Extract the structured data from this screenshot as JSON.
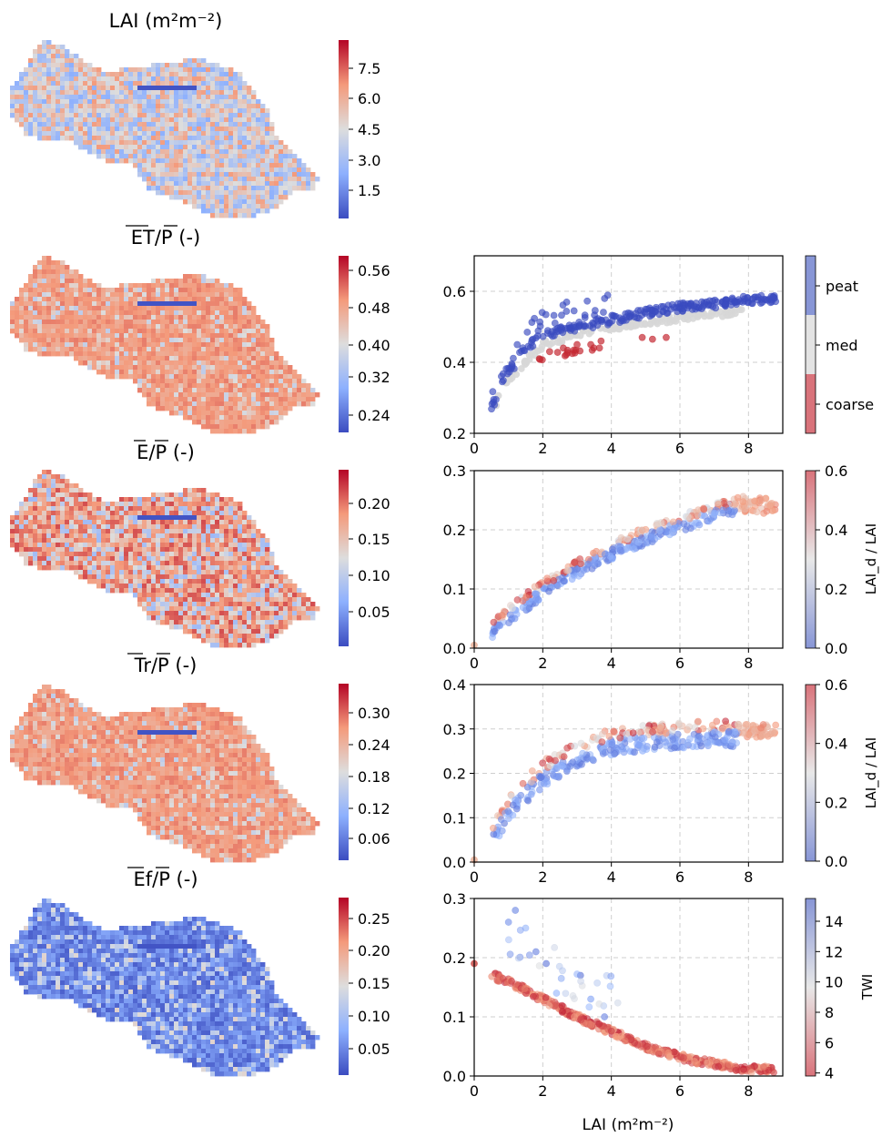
{
  "maps": [
    {
      "title": "LAI (m²m⁻²)",
      "cbar_ticks": [
        "7.5",
        "6.0",
        "4.5",
        "3.0",
        "1.5"
      ],
      "range": [
        0.2,
        8.6
      ],
      "scheme": "mixed-blue"
    },
    {
      "title": "ET/P (-)",
      "cbar_ticks": [
        "0.56",
        "0.48",
        "0.40",
        "0.32",
        "0.24"
      ],
      "range": [
        0.21,
        0.59
      ],
      "scheme": "mostly-red"
    },
    {
      "title": "E/P (-)",
      "cbar_ticks": [
        "0.20",
        "0.15",
        "0.10",
        "0.05"
      ],
      "range": [
        0.01,
        0.24
      ],
      "scheme": "red-mix"
    },
    {
      "title": "Tr/P (-)",
      "cbar_ticks": [
        "0.30",
        "0.24",
        "0.18",
        "0.12",
        "0.06"
      ],
      "range": [
        0.01,
        0.34
      ],
      "scheme": "mostly-red"
    },
    {
      "title": "Ef/P (-)",
      "cbar_ticks": [
        "0.25",
        "0.20",
        "0.15",
        "0.10",
        "0.05"
      ],
      "range": [
        0.01,
        0.28
      ],
      "scheme": "mostly-blue"
    }
  ],
  "chart_data": [
    {
      "type": "scatter",
      "panel": "ET/P vs LAI",
      "xlim": [
        0,
        9
      ],
      "ylim": [
        0.2,
        0.7
      ],
      "x_ticks": [
        "0",
        "2",
        "4",
        "6",
        "8"
      ],
      "y_ticks": [
        "0.2",
        "0.4",
        "0.6"
      ],
      "grid": true,
      "colorbar": {
        "type": "categorical",
        "categories": [
          "peat",
          "med",
          "coarse"
        ],
        "colors": [
          "#8896d6",
          "#e3e3e3",
          "#d9737b"
        ]
      },
      "series": [
        {
          "name": "peat",
          "color": "#3b4cc0",
          "x": [
            0.5,
            1,
            1.5,
            2,
            3,
            4,
            5,
            6,
            7,
            8,
            8.8
          ],
          "y": [
            0.27,
            0.37,
            0.44,
            0.48,
            0.5,
            0.52,
            0.54,
            0.555,
            0.565,
            0.575,
            0.58
          ]
        },
        {
          "name": "med",
          "color": "#dcdcdc",
          "x": [
            0.5,
            1,
            2,
            3,
            4,
            5,
            6,
            7,
            7.8
          ],
          "y": [
            0.26,
            0.35,
            0.45,
            0.48,
            0.5,
            0.515,
            0.525,
            0.535,
            0.54
          ]
        },
        {
          "name": "coarse",
          "color": "#c42a33",
          "x": [
            1.9,
            2.2,
            2.6,
            3.0,
            3.4,
            3.7,
            4.9,
            5.2,
            5.6
          ],
          "y": [
            0.41,
            0.43,
            0.44,
            0.45,
            0.45,
            0.46,
            0.47,
            0.465,
            0.47
          ]
        }
      ]
    },
    {
      "type": "scatter",
      "panel": "E/P vs LAI",
      "xlim": [
        0,
        9
      ],
      "ylim": [
        0,
        0.3
      ],
      "x_ticks": [
        "0",
        "2",
        "4",
        "6",
        "8"
      ],
      "y_ticks": [
        "0.0",
        "0.1",
        "0.2",
        "0.3"
      ],
      "grid": true,
      "colorbar": {
        "label": "LAI_d / LAI",
        "ticks": [
          "0.0",
          "0.2",
          "0.4",
          "0.6"
        ],
        "range": [
          0,
          0.6
        ]
      },
      "curve": {
        "x": [
          0.5,
          1,
          2,
          3,
          4,
          5,
          6,
          7,
          7.7,
          8.8
        ],
        "y": [
          0.03,
          0.055,
          0.1,
          0.135,
          0.165,
          0.19,
          0.21,
          0.23,
          0.24,
          0.235
        ]
      }
    },
    {
      "type": "scatter",
      "panel": "Tr/P vs LAI",
      "xlim": [
        0,
        9
      ],
      "ylim": [
        0,
        0.4
      ],
      "x_ticks": [
        "0",
        "2",
        "4",
        "6",
        "8"
      ],
      "y_ticks": [
        "0.0",
        "0.1",
        "0.2",
        "0.3",
        "0.4"
      ],
      "grid": true,
      "colorbar": {
        "label": "LAI_d / LAI",
        "ticks": [
          "0.0",
          "0.2",
          "0.4",
          "0.6"
        ],
        "range": [
          0,
          0.6
        ]
      },
      "curve": {
        "x": [
          0.5,
          1,
          2,
          3,
          4,
          5,
          6,
          7,
          7.7
        ],
        "y": [
          0.06,
          0.12,
          0.2,
          0.245,
          0.27,
          0.28,
          0.285,
          0.29,
          0.29
        ]
      }
    },
    {
      "type": "scatter",
      "panel": "Ef/P vs LAI",
      "xlim": [
        0,
        9
      ],
      "ylim": [
        0,
        0.3
      ],
      "x_ticks": [
        "0",
        "2",
        "4",
        "6",
        "8"
      ],
      "y_ticks": [
        "0.0",
        "0.1",
        "0.2",
        "0.3"
      ],
      "grid": true,
      "xlabel": "LAI (m²m⁻²)",
      "colorbar": {
        "label": "TWI",
        "ticks": [
          "14",
          "12",
          "10",
          "8",
          "6",
          "4"
        ],
        "range": [
          3.8,
          15.5
        ]
      },
      "curve": {
        "x": [
          0,
          0.5,
          1,
          2,
          3,
          4,
          5,
          6,
          7,
          8,
          8.8
        ],
        "y": [
          0.19,
          0.17,
          0.16,
          0.13,
          0.1,
          0.075,
          0.05,
          0.032,
          0.02,
          0.012,
          0.01
        ]
      },
      "outliers": {
        "x": [
          1.0,
          1.2,
          1.5,
          1.8,
          2.1,
          2.4,
          3.1,
          3.4,
          3.8
        ],
        "y": [
          0.26,
          0.28,
          0.25,
          0.21,
          0.19,
          0.14,
          0.17,
          0.13,
          0.1
        ]
      }
    }
  ]
}
